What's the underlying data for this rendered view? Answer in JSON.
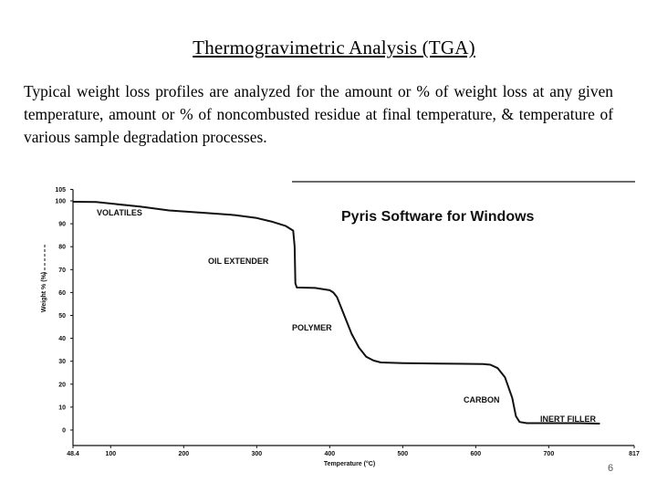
{
  "slide": {
    "title": "Thermogravimetric Analysis (TGA)",
    "body": "Typical weight loss profiles are analyzed for the amount or % of weight loss at any given temperature, amount or % of noncombusted residue at final temperature, & temperature of various sample degradation processes.",
    "page_number": "6"
  },
  "chart_data": {
    "type": "line",
    "software_label": "Pyris Software for Windows",
    "xlabel": "Temperature (°C)",
    "ylabel": "Weight % (%)",
    "xlim": [
      48.4,
      817
    ],
    "ylim": [
      -3,
      105
    ],
    "x_ticks": [
      "48.4",
      "100",
      "200",
      "300",
      "400",
      "500",
      "600",
      "700",
      "817"
    ],
    "y_ticks": [
      "105",
      "100",
      "90",
      "80",
      "70",
      "60",
      "50",
      "40",
      "30",
      "20",
      "10",
      "0"
    ],
    "series": [
      {
        "x": [
          48.4,
          80,
          140,
          180,
          230,
          270,
          300,
          320,
          340,
          350,
          352,
          353,
          355,
          380,
          400,
          405,
          410,
          420,
          430,
          440,
          450,
          460,
          470,
          500,
          550,
          610,
          620,
          630,
          640,
          650,
          655,
          660,
          670,
          700,
          740,
          770
        ],
        "y": [
          99.6,
          99.5,
          97.5,
          95.8,
          94.7,
          93.8,
          92.5,
          91,
          89,
          87,
          80,
          64,
          62.2,
          62,
          61,
          60,
          58,
          50,
          42,
          36,
          32,
          30.3,
          29.5,
          29.2,
          29,
          28.8,
          28.5,
          27,
          23,
          14,
          6,
          3.5,
          3,
          3,
          3,
          2.8
        ]
      }
    ],
    "annotations": [
      "VOLATILES",
      "OIL EXTENDER",
      "POLYMER",
      "CARBON",
      "INERT FILLER"
    ],
    "grid": false
  }
}
